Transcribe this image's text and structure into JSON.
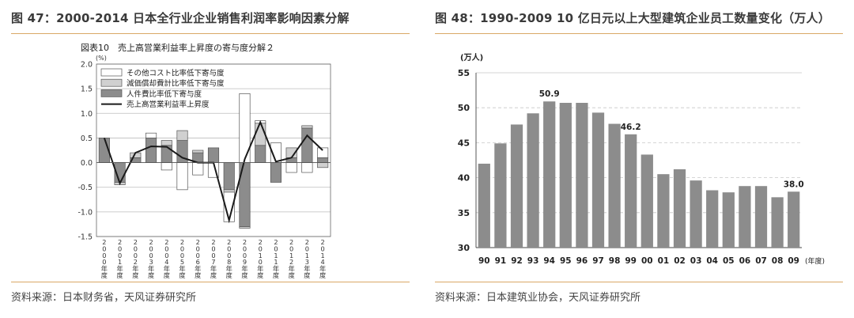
{
  "left": {
    "figure_title": "图 47：2000-2014 日本全行业企业销售利润率影响因素分解",
    "source": "资料来源：日本财务省，天风证券研究所"
  },
  "right": {
    "figure_title": "图 48：1990-2009 10 亿日元以上大型建筑企业员工数量变化（万人）",
    "source": "资料来源：日本建筑业协会，天风证券研究所"
  },
  "chart_data": [
    {
      "type": "bar",
      "title": "図表10　売上高営業利益率上昇度の寄与度分解２",
      "ylabel": "(%)",
      "ylim": [
        -1.5,
        2.0
      ],
      "yticks": [
        "2.0",
        "1.5",
        "1.0",
        "0.5",
        "0.0",
        "-0.5",
        "-1.0",
        "-1.5"
      ],
      "ytick_values": [
        2.0,
        1.5,
        1.0,
        0.5,
        0.0,
        -0.5,
        -1.0,
        -1.5
      ],
      "categories": [
        "2000",
        "2001",
        "2002",
        "2003",
        "2004",
        "2005",
        "2006",
        "2007",
        "2008",
        "2009",
        "2010",
        "2011",
        "2012",
        "2013",
        "2014"
      ],
      "category_suffix": "年度",
      "stacked": true,
      "grid": true,
      "legend_position": "top-left",
      "series": [
        {
          "name": "人件費比率低下寄与度",
          "kind": "bar",
          "color": "#8c8c8c",
          "values": [
            0.5,
            -0.4,
            0.1,
            0.5,
            0.35,
            0.45,
            0.2,
            0.3,
            -0.55,
            -1.3,
            0.35,
            -0.4,
            0.1,
            0.7,
            0.1
          ]
        },
        {
          "name": "減価償却費計比率低下寄与度",
          "kind": "bar",
          "color": "#d0d0d0",
          "values": [
            0.0,
            -0.05,
            0.1,
            0.0,
            0.1,
            0.2,
            0.05,
            0.0,
            -0.05,
            -0.03,
            0.45,
            0.0,
            0.2,
            0.05,
            -0.1
          ]
        },
        {
          "name": "その他コスト比率低下寄与度",
          "kind": "bar",
          "color": "#ffffff",
          "values": [
            0.0,
            0.0,
            0.0,
            0.1,
            -0.15,
            -0.55,
            -0.25,
            -0.3,
            -0.6,
            1.4,
            0.05,
            0.4,
            -0.2,
            -0.2,
            0.2
          ]
        },
        {
          "name": "売上高営業利益率上昇度",
          "kind": "line",
          "color": "#1a1a1a",
          "values": [
            0.5,
            -0.42,
            0.2,
            0.33,
            0.32,
            0.1,
            0.0,
            0.0,
            -1.17,
            0.07,
            0.82,
            0.02,
            0.1,
            0.55,
            0.25
          ]
        }
      ]
    },
    {
      "type": "bar",
      "ylabel": "(万人)",
      "xlabel": "(年度)",
      "ylim": [
        30,
        55
      ],
      "yticks": [
        30,
        35,
        40,
        45,
        50,
        55
      ],
      "categories": [
        "90",
        "91",
        "92",
        "93",
        "94",
        "95",
        "96",
        "97",
        "98",
        "99",
        "00",
        "01",
        "02",
        "03",
        "04",
        "05",
        "06",
        "07",
        "08",
        "09"
      ],
      "values": [
        42.0,
        44.9,
        47.6,
        49.2,
        50.9,
        50.7,
        50.7,
        49.3,
        47.7,
        46.2,
        43.3,
        40.5,
        41.2,
        39.6,
        38.2,
        37.9,
        38.8,
        38.8,
        37.2,
        38.0
      ],
      "data_labels": [
        {
          "index": 4,
          "text": "50.9"
        },
        {
          "index": 9,
          "text": "46.2"
        },
        {
          "index": 19,
          "text": "38.0"
        }
      ],
      "bar_color": "#8c8c8c",
      "grid": true
    }
  ]
}
